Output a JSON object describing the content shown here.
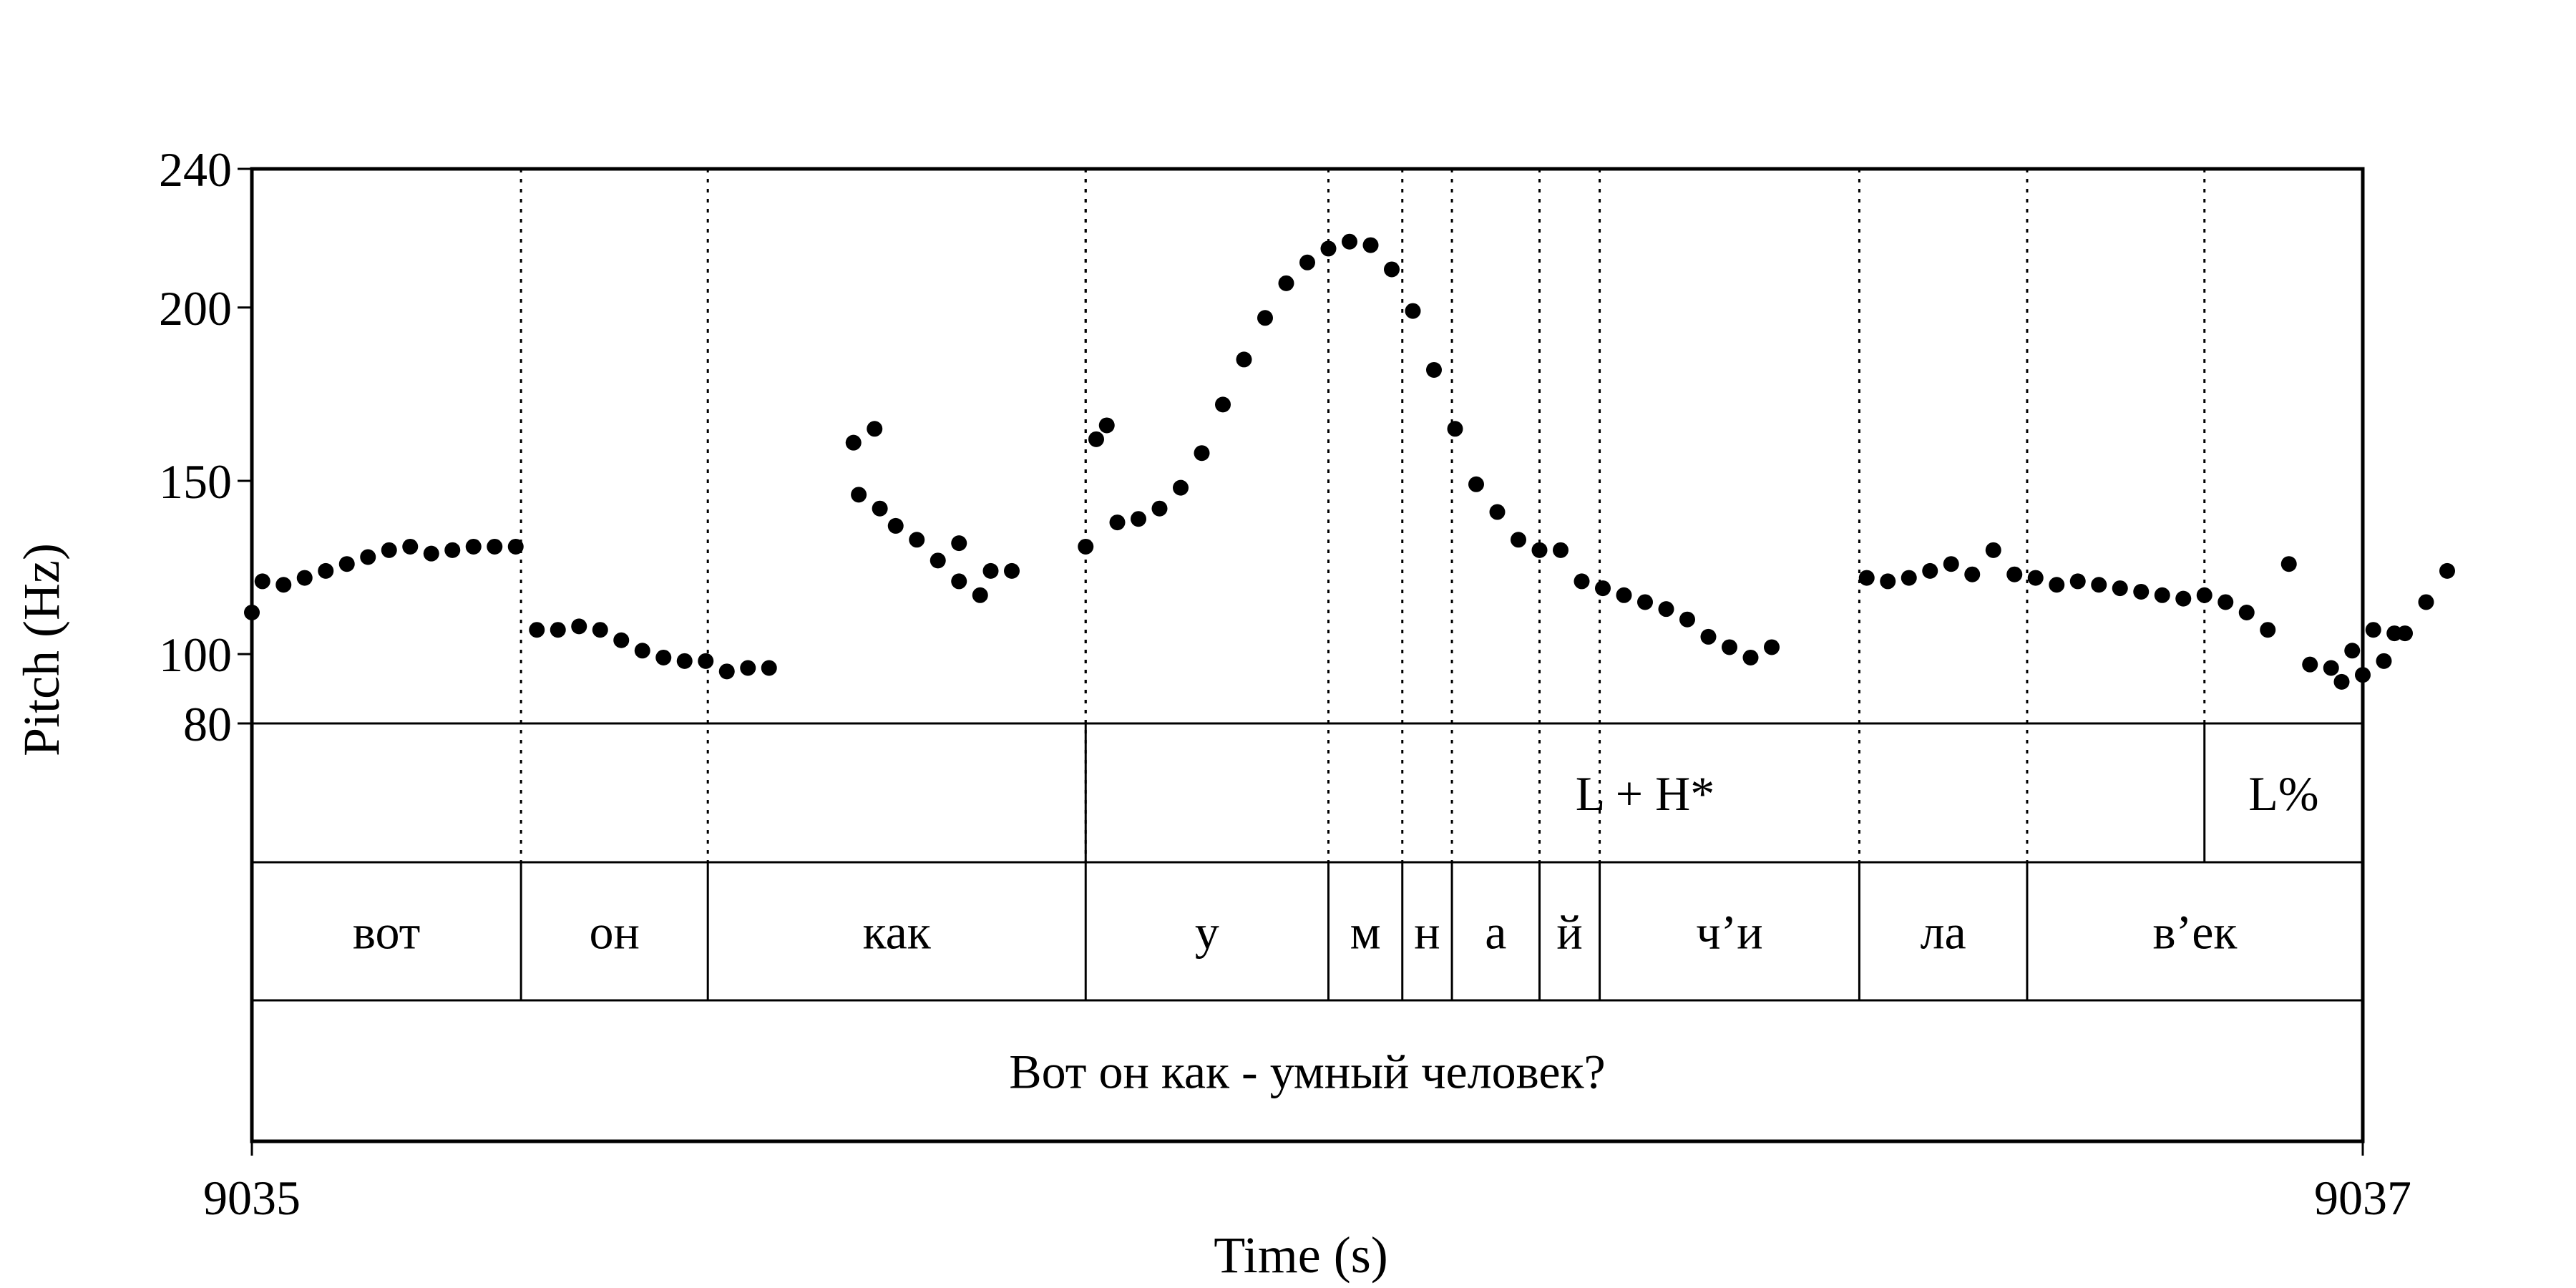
{
  "chart_data": {
    "type": "scatter",
    "xlabel": "Time (s)",
    "ylabel": "Pitch (Hz)",
    "xlim": [
      9035,
      9037
    ],
    "ylim": [
      80,
      240
    ],
    "x_ticks": [
      {
        "value": 9035,
        "label": "9035"
      },
      {
        "value": 9037,
        "label": "9037"
      }
    ],
    "y_ticks": [
      {
        "value": 80,
        "label": "80"
      },
      {
        "value": 100,
        "label": "100"
      },
      {
        "value": 150,
        "label": "150"
      },
      {
        "value": 200,
        "label": "200"
      },
      {
        "value": 240,
        "label": "240"
      }
    ],
    "grid": false,
    "series": [
      {
        "values": [
          [
            9035.0,
            112
          ],
          [
            9035.01,
            121
          ],
          [
            9035.03,
            120
          ],
          [
            9035.05,
            122
          ],
          [
            9035.07,
            124
          ],
          [
            9035.09,
            126
          ],
          [
            9035.11,
            128
          ],
          [
            9035.13,
            130
          ],
          [
            9035.15,
            131
          ],
          [
            9035.17,
            129
          ],
          [
            9035.19,
            130
          ],
          [
            9035.21,
            131
          ],
          [
            9035.23,
            131
          ],
          [
            9035.25,
            131
          ],
          [
            9035.27,
            107
          ],
          [
            9035.29,
            107
          ],
          [
            9035.31,
            108
          ],
          [
            9035.33,
            107
          ],
          [
            9035.35,
            104
          ],
          [
            9035.37,
            101
          ],
          [
            9035.39,
            99
          ],
          [
            9035.41,
            98
          ],
          [
            9035.43,
            98
          ],
          [
            9035.45,
            95
          ],
          [
            9035.47,
            96
          ],
          [
            9035.49,
            96
          ],
          [
            9035.57,
            161
          ],
          [
            9035.59,
            165
          ],
          [
            9035.575,
            146
          ],
          [
            9035.595,
            142
          ],
          [
            9035.61,
            137
          ],
          [
            9035.63,
            133
          ],
          [
            9035.65,
            127
          ],
          [
            9035.67,
            121
          ],
          [
            9035.69,
            117
          ],
          [
            9035.67,
            132
          ],
          [
            9035.7,
            124
          ],
          [
            9035.72,
            124
          ],
          [
            9035.79,
            131
          ],
          [
            9035.8,
            162
          ],
          [
            9035.81,
            166
          ],
          [
            9035.82,
            138
          ],
          [
            9035.84,
            139
          ],
          [
            9035.86,
            142
          ],
          [
            9035.88,
            148
          ],
          [
            9035.9,
            158
          ],
          [
            9035.92,
            172
          ],
          [
            9035.94,
            185
          ],
          [
            9035.96,
            197
          ],
          [
            9035.98,
            207
          ],
          [
            9036.0,
            213
          ],
          [
            9036.02,
            217
          ],
          [
            9036.04,
            219
          ],
          [
            9036.06,
            218
          ],
          [
            9036.08,
            211
          ],
          [
            9036.1,
            199
          ],
          [
            9036.12,
            182
          ],
          [
            9036.14,
            165
          ],
          [
            9036.16,
            149
          ],
          [
            9036.18,
            141
          ],
          [
            9036.2,
            133
          ],
          [
            9036.22,
            130
          ],
          [
            9036.24,
            130
          ],
          [
            9036.26,
            121
          ],
          [
            9036.28,
            119
          ],
          [
            9036.3,
            117
          ],
          [
            9036.32,
            115
          ],
          [
            9036.34,
            113
          ],
          [
            9036.36,
            110
          ],
          [
            9036.38,
            105
          ],
          [
            9036.4,
            102
          ],
          [
            9036.42,
            99
          ],
          [
            9036.44,
            102
          ],
          [
            9036.53,
            122
          ],
          [
            9036.55,
            121
          ],
          [
            9036.57,
            122
          ],
          [
            9036.59,
            124
          ],
          [
            9036.61,
            126
          ],
          [
            9036.63,
            123
          ],
          [
            9036.65,
            130
          ],
          [
            9036.67,
            123
          ],
          [
            9036.69,
            122
          ],
          [
            9036.71,
            120
          ],
          [
            9036.73,
            121
          ],
          [
            9036.75,
            120
          ],
          [
            9036.77,
            119
          ],
          [
            9036.79,
            118
          ],
          [
            9036.81,
            117
          ],
          [
            9036.83,
            116
          ],
          [
            9036.85,
            117
          ],
          [
            9036.87,
            115
          ],
          [
            9036.89,
            112
          ],
          [
            9036.91,
            107
          ],
          [
            9036.93,
            126
          ],
          [
            9036.95,
            97
          ],
          [
            9036.97,
            96
          ],
          [
            9036.99,
            101
          ],
          [
            9037.01,
            107
          ],
          [
            9037.03,
            106
          ],
          [
            9036.98,
            92
          ],
          [
            9037.0,
            94
          ],
          [
            9037.02,
            98
          ],
          [
            9037.04,
            106
          ],
          [
            9037.06,
            115
          ],
          [
            9037.08,
            124
          ]
        ]
      }
    ],
    "tiers": [
      {
        "intervals": [
          {
            "start": 9035.0,
            "end": 9035.79,
            "text": ""
          },
          {
            "start": 9035.79,
            "end": 9036.85,
            "text": "L + H*"
          },
          {
            "start": 9036.85,
            "end": 9037.0,
            "text": "L%"
          }
        ]
      },
      {
        "intervals": [
          {
            "start": 9035.0,
            "end": 9035.255,
            "text": "вот"
          },
          {
            "start": 9035.255,
            "end": 9035.432,
            "text": "он"
          },
          {
            "start": 9035.432,
            "end": 9035.79,
            "text": "как"
          },
          {
            "start": 9035.79,
            "end": 9036.02,
            "text": "у"
          },
          {
            "start": 9036.02,
            "end": 9036.09,
            "text": "м"
          },
          {
            "start": 9036.09,
            "end": 9036.137,
            "text": "н"
          },
          {
            "start": 9036.137,
            "end": 9036.22,
            "text": "а"
          },
          {
            "start": 9036.22,
            "end": 9036.277,
            "text": "й"
          },
          {
            "start": 9036.277,
            "end": 9036.523,
            "text": "ч’и"
          },
          {
            "start": 9036.523,
            "end": 9036.682,
            "text": "ла"
          },
          {
            "start": 9036.682,
            "end": 9037.0,
            "text": "в’ек"
          }
        ]
      },
      {
        "intervals": [
          {
            "start": 9035.0,
            "end": 9037.0,
            "text": "Вот он как - умный человек?"
          }
        ]
      }
    ]
  }
}
